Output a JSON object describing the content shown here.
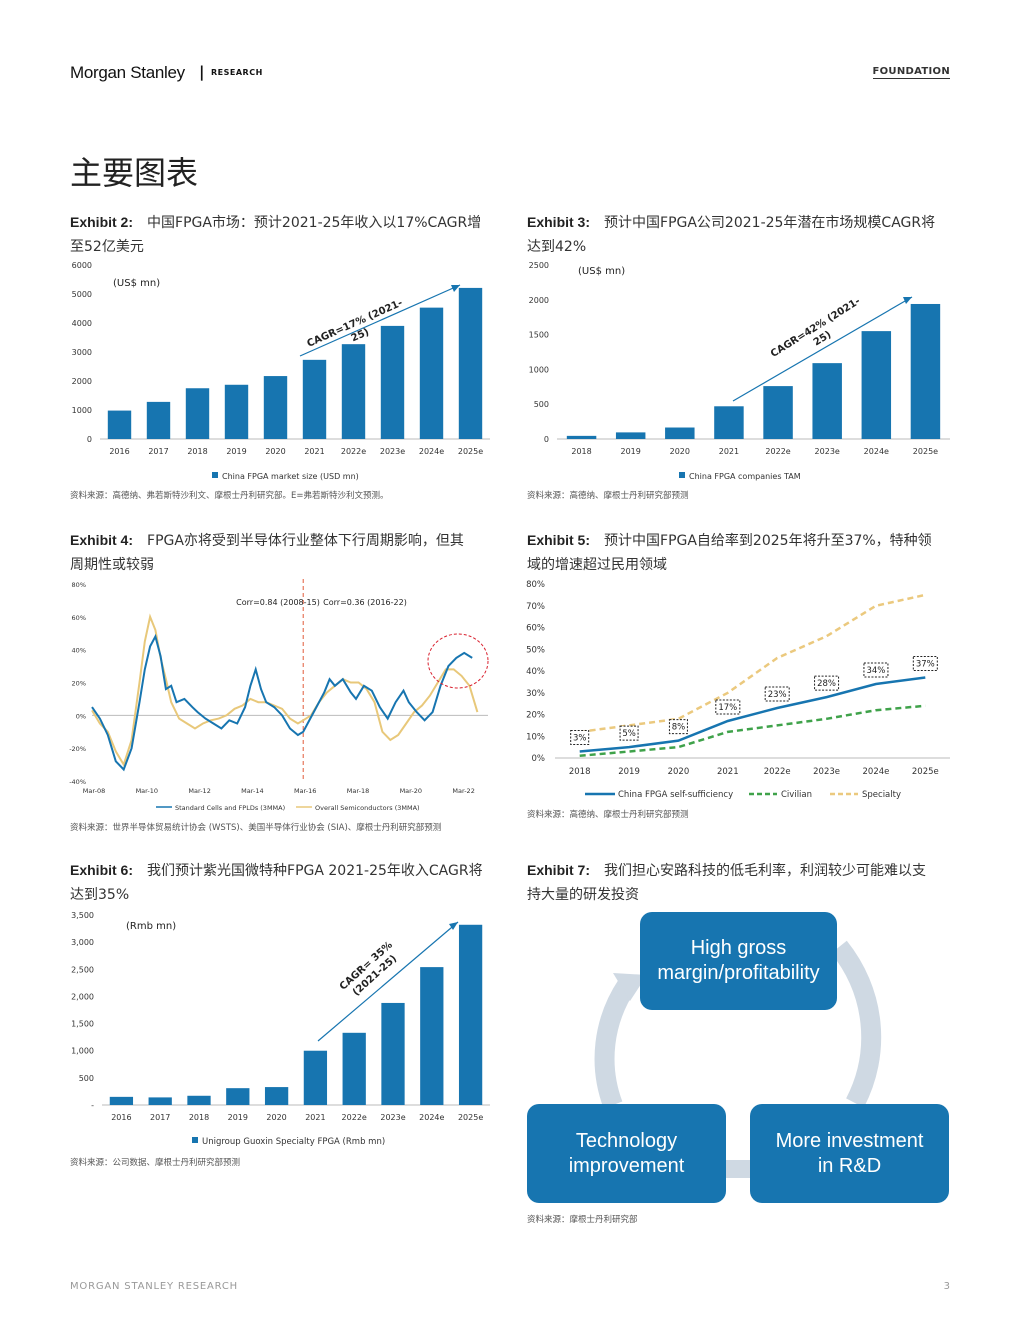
{
  "header": {
    "brand": "Morgan Stanley",
    "separator": "|",
    "section": "RESEARCH",
    "tag": "FOUNDATION"
  },
  "page_title": "主要图表",
  "exhibits": [
    {
      "label": "Exhibit 2:",
      "title_l1": "中国FPGA市场：预计2021-25年收入以17%CAGR增",
      "title_l2": "至52亿美元",
      "unit": "(US$ mn)",
      "annotation_l1": "CAGR=17% (2021-",
      "annotation_l2": "25)",
      "legend": "China FPGA market size (USD mn)",
      "source": "资料来源：高德纳、弗若斯特沙利文、摩根士丹利研究部。E=弗若斯特沙利文预测。"
    },
    {
      "label": "Exhibit 3:",
      "title_l1": "预计中国FPGA公司2021-25年潜在市场规模CAGR将",
      "title_l2": "达到42%",
      "unit": "(US$ mn)",
      "annotation_l1": "CAGR=42% (2021-",
      "annotation_l2": "25)",
      "legend": "China FPGA companies TAM",
      "source": "资料来源：高德纳、摩根士丹利研究部预测"
    },
    {
      "label": "Exhibit 4:",
      "title_l1": "FPGA亦将受到半导体行业整体下行周期影响，但其",
      "title_l2": "周期性或较弱",
      "corr1": "Corr=0.84 (2008-15)",
      "corr2": "Corr=0.36 (2016-22)",
      "legend1": "Standard Cells and FPLDs (3MMA)",
      "legend2": "Overall Semiconductors (3MMA)",
      "source": "资料来源：世界半导体贸易统计协会 (WSTS)、美国半导体行业协会 (SIA)、摩根士丹利研究部预测"
    },
    {
      "label": "Exhibit 5:",
      "title_l1": "预计中国FPGA自给率到2025年将升至37%，特种领",
      "title_l2": "域的增速超过民用领域",
      "legend1": "China FPGA self-sufficiency",
      "legend2": "Civilian",
      "legend3": "Specialty",
      "source": "资料来源：高德纳、摩根士丹利研究部预测"
    },
    {
      "label": "Exhibit 6:",
      "title_l1": "我们预计紫光国微特种FPGA 2021-25年收入CAGR将",
      "title_l2": "达到35%",
      "unit": "(Rmb mn)",
      "annotation_l1": "CAGR= 35%",
      "annotation_l2": "(2021-25)",
      "legend": "Unigroup Guoxin Specialty FPGA (Rmb mn)",
      "source": "资料来源：公司数据、摩根士丹利研究部预测"
    },
    {
      "label": "Exhibit 7:",
      "title_l1": "我们担心安路科技的低毛利率，利润较少可能难以支",
      "title_l2": "持大量的研发投资",
      "source": "资料来源：摩根士丹利研究部"
    }
  ],
  "cycle": {
    "top_l1": "High gross",
    "top_l2": "margin/profitability",
    "left_l1": "Technology",
    "left_l2": "improvement",
    "right_l1": "More investment",
    "right_l2": "in R&D"
  },
  "chart_data": [
    {
      "type": "bar",
      "categories": [
        "2016",
        "2017",
        "2018",
        "2019",
        "2020",
        "2021",
        "2022e",
        "2023e",
        "2024e",
        "2025e"
      ],
      "series": [
        {
          "name": "China FPGA market size (USD mn)",
          "values": [
            980,
            1280,
            1750,
            1870,
            2170,
            2730,
            3270,
            3900,
            4530,
            5210
          ]
        }
      ],
      "ylim": [
        0,
        6000
      ],
      "yticks": [
        "0",
        "1000",
        "2000",
        "3000",
        "4000",
        "5000",
        "6000"
      ],
      "color": "#1775b0"
    },
    {
      "type": "bar",
      "categories": [
        "2018",
        "2019",
        "2020",
        "2021",
        "2022e",
        "2023e",
        "2024e",
        "2025e"
      ],
      "series": [
        {
          "name": "China FPGA companies TAM",
          "values": [
            45,
            95,
            165,
            470,
            760,
            1090,
            1550,
            1940
          ]
        }
      ],
      "ylim": [
        0,
        2500
      ],
      "yticks": [
        "0",
        "500",
        "1000",
        "1500",
        "2000",
        "2500"
      ],
      "color": "#1775b0"
    },
    {
      "type": "line",
      "xticks": [
        "Mar-08",
        "Mar-10",
        "Mar-12",
        "Mar-14",
        "Mar-16",
        "Mar-18",
        "Mar-20",
        "Mar-22"
      ],
      "xlim": [
        2008.0,
        2023.0
      ],
      "ylim": [
        -40,
        80
      ],
      "yticks": [
        "-40%",
        "-20%",
        "0%",
        "20%",
        "40%",
        "60%",
        "80%"
      ],
      "divider_x": 2016.0,
      "series": [
        {
          "name": "Standard Cells and FPLDs (3MMA)",
          "color": "#1775b0",
          "points": [
            [
              2008.0,
              5
            ],
            [
              2008.3,
              -2
            ],
            [
              2008.6,
              -12
            ],
            [
              2008.9,
              -28
            ],
            [
              2009.2,
              -33
            ],
            [
              2009.5,
              -20
            ],
            [
              2009.8,
              8
            ],
            [
              2010.0,
              28
            ],
            [
              2010.2,
              42
            ],
            [
              2010.4,
              48
            ],
            [
              2010.6,
              36
            ],
            [
              2010.8,
              16
            ],
            [
              2011.0,
              18
            ],
            [
              2011.2,
              8
            ],
            [
              2011.5,
              10
            ],
            [
              2011.8,
              5
            ],
            [
              2012.0,
              2
            ],
            [
              2012.3,
              -2
            ],
            [
              2012.6,
              -5
            ],
            [
              2012.9,
              -8
            ],
            [
              2013.2,
              -3
            ],
            [
              2013.5,
              -5
            ],
            [
              2013.8,
              5
            ],
            [
              2014.0,
              18
            ],
            [
              2014.2,
              28
            ],
            [
              2014.4,
              16
            ],
            [
              2014.6,
              8
            ],
            [
              2014.9,
              5
            ],
            [
              2015.2,
              0
            ],
            [
              2015.5,
              -8
            ],
            [
              2015.8,
              -12
            ],
            [
              2016.0,
              -10
            ],
            [
              2016.2,
              -4
            ],
            [
              2016.5,
              5
            ],
            [
              2016.8,
              14
            ],
            [
              2017.0,
              22
            ],
            [
              2017.2,
              18
            ],
            [
              2017.5,
              22
            ],
            [
              2017.8,
              14
            ],
            [
              2018.0,
              10
            ],
            [
              2018.3,
              18
            ],
            [
              2018.6,
              15
            ],
            [
              2018.9,
              5
            ],
            [
              2019.2,
              -2
            ],
            [
              2019.5,
              8
            ],
            [
              2019.8,
              15
            ],
            [
              2020.0,
              8
            ],
            [
              2020.3,
              2
            ],
            [
              2020.6,
              -3
            ],
            [
              2020.9,
              2
            ],
            [
              2021.2,
              18
            ],
            [
              2021.5,
              30
            ],
            [
              2021.8,
              35
            ],
            [
              2022.1,
              38
            ],
            [
              2022.4,
              35
            ]
          ]
        },
        {
          "name": "Overall Semiconductors (3MMA)",
          "color": "#e8c87a",
          "points": [
            [
              2008.0,
              3
            ],
            [
              2008.3,
              -5
            ],
            [
              2008.6,
              -10
            ],
            [
              2008.9,
              -22
            ],
            [
              2009.2,
              -30
            ],
            [
              2009.5,
              -15
            ],
            [
              2009.8,
              20
            ],
            [
              2010.0,
              45
            ],
            [
              2010.2,
              60
            ],
            [
              2010.4,
              52
            ],
            [
              2010.6,
              35
            ],
            [
              2010.8,
              22
            ],
            [
              2011.0,
              8
            ],
            [
              2011.3,
              -2
            ],
            [
              2011.6,
              -5
            ],
            [
              2011.9,
              -8
            ],
            [
              2012.2,
              -5
            ],
            [
              2012.5,
              -3
            ],
            [
              2012.8,
              -2
            ],
            [
              2013.1,
              0
            ],
            [
              2013.4,
              4
            ],
            [
              2013.7,
              6
            ],
            [
              2014.0,
              10
            ],
            [
              2014.3,
              8
            ],
            [
              2014.6,
              8
            ],
            [
              2014.9,
              6
            ],
            [
              2015.2,
              4
            ],
            [
              2015.5,
              -2
            ],
            [
              2015.8,
              -5
            ],
            [
              2016.0,
              -3
            ],
            [
              2016.3,
              0
            ],
            [
              2016.6,
              8
            ],
            [
              2016.9,
              14
            ],
            [
              2017.2,
              18
            ],
            [
              2017.5,
              22
            ],
            [
              2017.8,
              20
            ],
            [
              2018.1,
              20
            ],
            [
              2018.4,
              16
            ],
            [
              2018.7,
              8
            ],
            [
              2019.0,
              -10
            ],
            [
              2019.3,
              -15
            ],
            [
              2019.6,
              -12
            ],
            [
              2019.9,
              -5
            ],
            [
              2020.2,
              2
            ],
            [
              2020.5,
              6
            ],
            [
              2020.8,
              12
            ],
            [
              2021.1,
              20
            ],
            [
              2021.4,
              28
            ],
            [
              2021.7,
              28
            ],
            [
              2022.0,
              24
            ],
            [
              2022.3,
              18
            ],
            [
              2022.6,
              2
            ]
          ]
        }
      ]
    },
    {
      "type": "line",
      "categories": [
        "2018",
        "2019",
        "2020",
        "2021",
        "2022e",
        "2023e",
        "2024e",
        "2025e"
      ],
      "ylim": [
        0,
        80
      ],
      "yticks": [
        "0%",
        "10%",
        "20%",
        "30%",
        "40%",
        "50%",
        "60%",
        "70%",
        "80%"
      ],
      "series": [
        {
          "name": "China FPGA self-sufficiency",
          "color": "#1775b0",
          "style": "solid",
          "values": [
            3,
            5,
            8,
            17,
            23,
            28,
            34,
            37
          ]
        },
        {
          "name": "Civilian",
          "color": "#3fa24a",
          "style": "dashed",
          "values": [
            1,
            3,
            5,
            12,
            15,
            18,
            22,
            24
          ]
        },
        {
          "name": "Specialty",
          "color": "#ebc97e",
          "style": "dashed",
          "values": [
            12,
            15,
            18,
            30,
            46,
            56,
            70,
            75
          ]
        }
      ],
      "data_labels": [
        "3%",
        "5%",
        "8%",
        "17%",
        "23%",
        "28%",
        "34%",
        "37%"
      ]
    },
    {
      "type": "bar",
      "categories": [
        "2016",
        "2017",
        "2018",
        "2019",
        "2020",
        "2021",
        "2022e",
        "2023e",
        "2024e",
        "2025e"
      ],
      "series": [
        {
          "name": "Unigroup Guoxin Specialty FPGA (Rmb mn)",
          "values": [
            150,
            140,
            170,
            310,
            330,
            1000,
            1330,
            1880,
            2540,
            3320
          ]
        }
      ],
      "ylim": [
        0,
        3500
      ],
      "yticks": [
        "-",
        "500",
        "1,000",
        "1,500",
        "2,000",
        "2,500",
        "3,000",
        "3,500"
      ],
      "color": "#1775b0"
    }
  ],
  "footer": {
    "left": "MORGAN STANLEY RESEARCH",
    "page": "3"
  }
}
